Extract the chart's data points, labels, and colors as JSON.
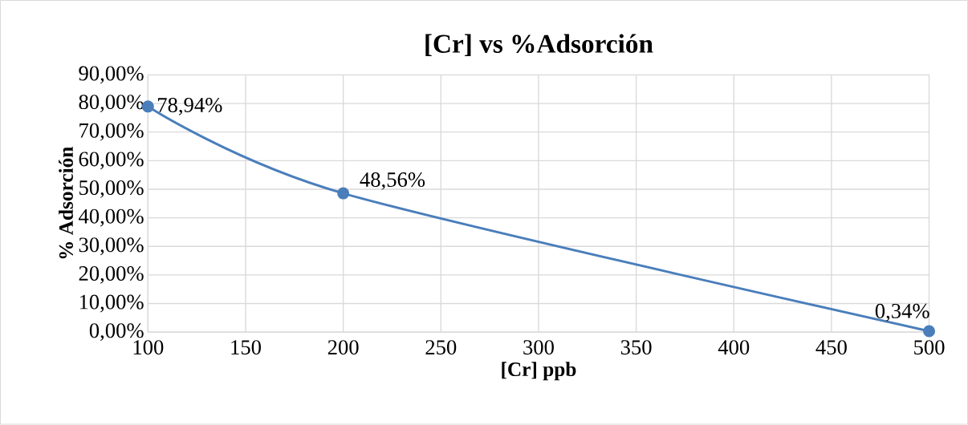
{
  "chart_data": {
    "type": "line",
    "title": "[Cr] vs %Adsorción",
    "xlabel": "[Cr] ppb",
    "ylabel": "% Adsorción",
    "x": [
      100,
      200,
      500
    ],
    "series": [
      {
        "color": "#4a7ebb",
        "values": [
          78.94,
          48.56,
          0.34
        ],
        "value_labels": [
          "78,94%",
          "48,56%",
          "0,34%"
        ]
      }
    ],
    "xlim": [
      100,
      500
    ],
    "xticks": [
      100,
      150,
      200,
      250,
      300,
      350,
      400,
      450,
      500
    ],
    "ylim": [
      0,
      90
    ],
    "yticks": [
      {
        "value": 0,
        "label": "0,00%"
      },
      {
        "value": 10,
        "label": "10,00%"
      },
      {
        "value": 20,
        "label": "20,00%"
      },
      {
        "value": 30,
        "label": "30,00%"
      },
      {
        "value": 40,
        "label": "40,00%"
      },
      {
        "value": 50,
        "label": "50,00%"
      },
      {
        "value": 60,
        "label": "60,00%"
      },
      {
        "value": 70,
        "label": "70,00%"
      },
      {
        "value": 80,
        "label": "80,00%"
      },
      {
        "value": 90,
        "label": "90,00%"
      }
    ],
    "grid": true,
    "marker": "circle",
    "line_style": "solid"
  }
}
